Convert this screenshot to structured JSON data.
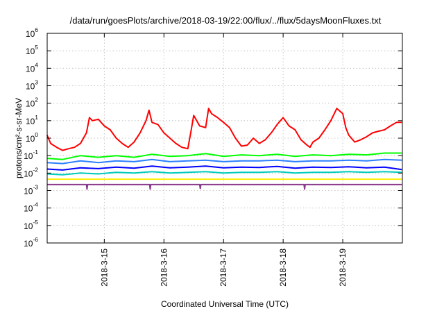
{
  "chart_data": {
    "type": "line",
    "title": "/data/run/goesPlots/archive/2018-03-19/22:00/flux/../flux/5daysMoonFluxes.txt",
    "xlabel": "Coordinated Universal Time (UTC)",
    "ylabel": "protons/cm²-s-sr-MeV",
    "yscale": "log",
    "xlim": [
      "2018-03-14 01:00",
      "2018-03-20 00:00"
    ],
    "ylim": [
      1e-06,
      1000000.0
    ],
    "grid": true,
    "x_ticks": [
      "2018-3-15",
      "2018-3-16",
      "2018-3-17",
      "2018-3-18",
      "2018-3-19"
    ],
    "y_ticks": [
      {
        "base": "10",
        "exp": "-6"
      },
      {
        "base": "10",
        "exp": "-5"
      },
      {
        "base": "10",
        "exp": "-4"
      },
      {
        "base": "10",
        "exp": "-3"
      },
      {
        "base": "10",
        "exp": "-2"
      },
      {
        "base": "10",
        "exp": "-1"
      },
      {
        "base": "10",
        "exp": "0"
      },
      {
        "base": "10",
        "exp": "1"
      },
      {
        "base": "10",
        "exp": "2"
      },
      {
        "base": "10",
        "exp": "3"
      },
      {
        "base": "10",
        "exp": "4"
      },
      {
        "base": "10",
        "exp": "5"
      },
      {
        "base": "10",
        "exp": "6"
      }
    ],
    "x_unit": "day of March 2018",
    "series": [
      {
        "color": "#ff0000",
        "x": [
          14.04,
          14.1,
          14.2,
          14.3,
          14.4,
          14.5,
          14.6,
          14.7,
          14.75,
          14.8,
          14.9,
          15.0,
          15.1,
          15.2,
          15.3,
          15.4,
          15.5,
          15.6,
          15.7,
          15.75,
          15.8,
          15.9,
          16.0,
          16.1,
          16.2,
          16.3,
          16.4,
          16.45,
          16.5,
          16.6,
          16.7,
          16.75,
          16.8,
          16.9,
          17.0,
          17.1,
          17.2,
          17.3,
          17.4,
          17.5,
          17.6,
          17.7,
          17.8,
          17.9,
          18.0,
          18.1,
          18.2,
          18.3,
          18.4,
          18.45,
          18.5,
          18.6,
          18.7,
          18.8,
          18.9,
          19.0,
          19.05,
          19.1,
          19.2,
          19.3,
          19.4,
          19.5,
          19.6,
          19.7,
          19.8,
          19.9,
          19.99
        ],
        "y": [
          1.5,
          0.5,
          0.3,
          0.2,
          0.25,
          0.3,
          0.5,
          2,
          15,
          10,
          12,
          5,
          3,
          1,
          0.5,
          0.3,
          0.6,
          2,
          10,
          40,
          8,
          6,
          2,
          1,
          0.5,
          0.3,
          0.25,
          2,
          20,
          5,
          4,
          50,
          25,
          15,
          8,
          4,
          1,
          0.35,
          0.4,
          1,
          0.5,
          0.8,
          2,
          6,
          15,
          5,
          3,
          0.8,
          0.4,
          0.3,
          0.6,
          1,
          3,
          10,
          50,
          25,
          4,
          1.5,
          0.6,
          0.8,
          1.2,
          2,
          2.5,
          3,
          5,
          8,
          8
        ]
      },
      {
        "color": "#00ff00",
        "x": [
          14.04,
          14.3,
          14.6,
          14.9,
          15.2,
          15.5,
          15.8,
          16.1,
          16.4,
          16.7,
          17.0,
          17.3,
          17.6,
          17.9,
          18.2,
          18.5,
          18.8,
          19.1,
          19.4,
          19.7,
          19.99
        ],
        "y": [
          0.07,
          0.06,
          0.1,
          0.08,
          0.1,
          0.08,
          0.12,
          0.09,
          0.1,
          0.13,
          0.09,
          0.11,
          0.1,
          0.12,
          0.09,
          0.11,
          0.1,
          0.12,
          0.11,
          0.14,
          0.14
        ]
      },
      {
        "color": "#2b7fff",
        "x": [
          14.04,
          14.3,
          14.6,
          14.9,
          15.2,
          15.5,
          15.8,
          16.1,
          16.4,
          16.7,
          17.0,
          17.3,
          17.6,
          17.9,
          18.2,
          18.5,
          18.8,
          19.1,
          19.4,
          19.7,
          19.99
        ],
        "y": [
          0.04,
          0.035,
          0.05,
          0.04,
          0.05,
          0.045,
          0.06,
          0.045,
          0.05,
          0.055,
          0.045,
          0.05,
          0.05,
          0.055,
          0.045,
          0.05,
          0.05,
          0.055,
          0.05,
          0.06,
          0.055
        ]
      },
      {
        "color": "#0000ff",
        "x": [
          14.04,
          14.3,
          14.6,
          14.9,
          15.2,
          15.5,
          15.8,
          16.1,
          16.4,
          16.7,
          17.0,
          17.3,
          17.6,
          17.9,
          18.2,
          18.5,
          18.8,
          19.1,
          19.4,
          19.7,
          19.99
        ],
        "y": [
          0.017,
          0.015,
          0.02,
          0.018,
          0.022,
          0.019,
          0.025,
          0.02,
          0.022,
          0.025,
          0.02,
          0.022,
          0.021,
          0.024,
          0.019,
          0.022,
          0.021,
          0.023,
          0.02,
          0.022,
          0.016
        ]
      },
      {
        "color": "#00ccbb",
        "x": [
          14.04,
          14.3,
          14.6,
          14.9,
          15.2,
          15.5,
          15.8,
          16.1,
          16.4,
          16.7,
          17.0,
          17.3,
          17.6,
          17.9,
          18.2,
          18.5,
          18.8,
          19.1,
          19.4,
          19.7,
          19.99
        ],
        "y": [
          0.009,
          0.008,
          0.01,
          0.009,
          0.011,
          0.01,
          0.012,
          0.01,
          0.011,
          0.012,
          0.01,
          0.011,
          0.011,
          0.012,
          0.01,
          0.011,
          0.011,
          0.012,
          0.011,
          0.012,
          0.011
        ]
      },
      {
        "color": "#ffee00",
        "x": [
          14.04,
          14.5,
          15.0,
          15.5,
          16.0,
          16.5,
          17.0,
          17.5,
          18.0,
          18.5,
          19.0,
          19.5,
          19.99
        ],
        "y": [
          0.0045,
          0.0045,
          0.0045,
          0.0045,
          0.0045,
          0.0045,
          0.0045,
          0.0045,
          0.0045,
          0.0045,
          0.0045,
          0.0045,
          0.0045
        ]
      },
      {
        "color": "#8b3a8b",
        "x": [
          14.04,
          14.5,
          14.7,
          14.71,
          14.72,
          15.0,
          15.5,
          15.76,
          15.77,
          15.78,
          16.0,
          16.4,
          16.6,
          16.61,
          16.62,
          17.0,
          17.5,
          18.0,
          18.35,
          18.36,
          18.37,
          18.7,
          19.0,
          19.5,
          19.99
        ],
        "y": [
          0.0022,
          0.0022,
          0.0022,
          0.0012,
          0.0022,
          0.0022,
          0.0022,
          0.0022,
          0.0012,
          0.0022,
          0.0022,
          0.0022,
          0.0022,
          0.0013,
          0.0022,
          0.0022,
          0.0022,
          0.0022,
          0.0022,
          0.0012,
          0.0022,
          0.0022,
          0.0022,
          0.0022,
          0.0022
        ]
      }
    ]
  }
}
